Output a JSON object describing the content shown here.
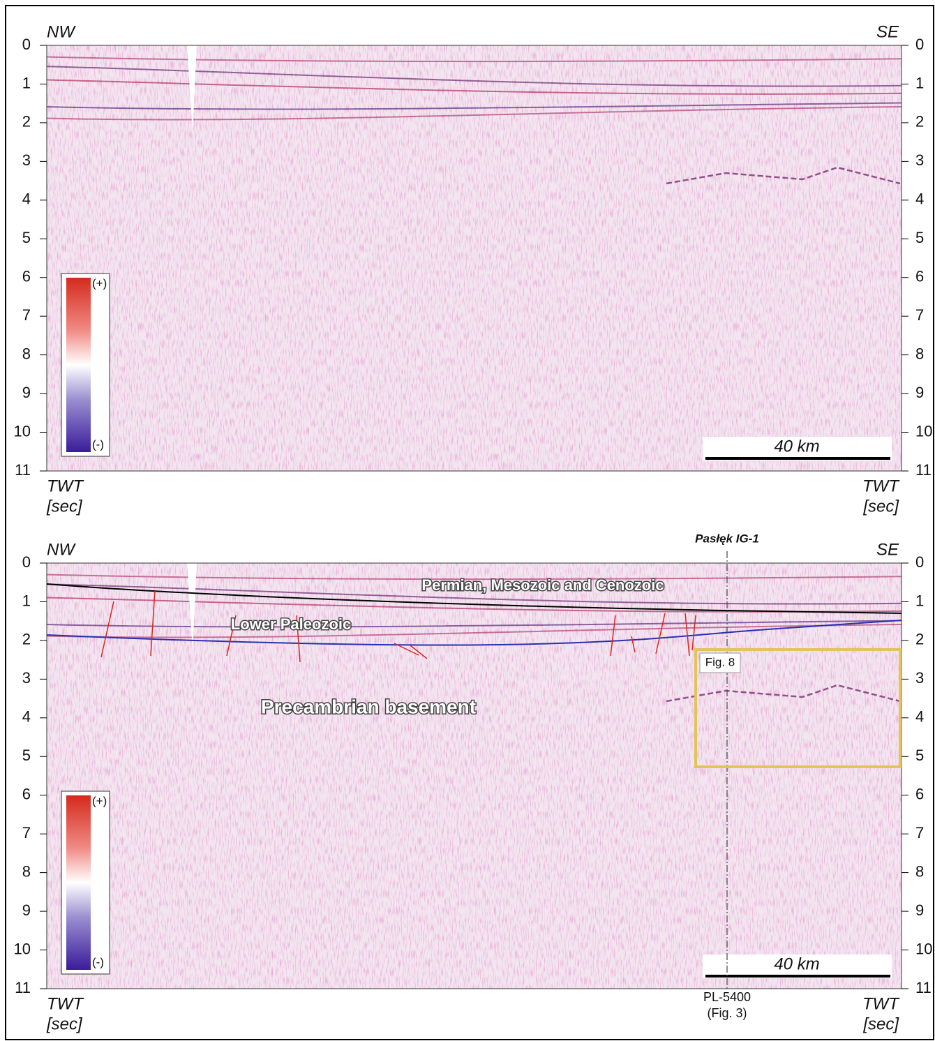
{
  "panels": [
    {
      "left_label": "NW",
      "right_label": "SE",
      "yticks": [
        0,
        1,
        2,
        3,
        4,
        5,
        6,
        7,
        8,
        9,
        10,
        11
      ],
      "axis_label": [
        "TWT",
        "[sec]"
      ],
      "colorbar": [
        "(+)",
        "(-)"
      ],
      "scale_bar": "40 km"
    },
    {
      "left_label": "NW",
      "right_label": "SE",
      "yticks": [
        0,
        1,
        2,
        3,
        4,
        5,
        6,
        7,
        8,
        9,
        10,
        11
      ],
      "axis_label": [
        "TWT",
        "[sec]"
      ],
      "colorbar": [
        "(+)",
        "(-)"
      ],
      "scale_bar": "40 km",
      "well": "Pasłęk IG-1",
      "units": [
        "Permian, Mesozoic and Cenozoic",
        "Lower Paleozoic",
        "Precambrian basement"
      ],
      "inset": "Fig. 8",
      "profile": [
        "PL-5400",
        "(Fig. 3)"
      ]
    }
  ]
}
